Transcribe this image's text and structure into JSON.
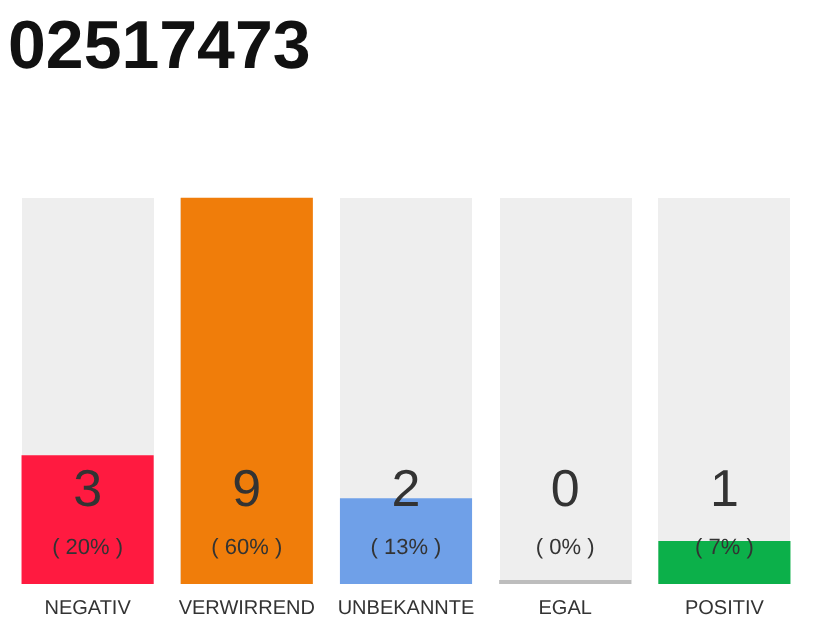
{
  "chart_data": {
    "type": "bar",
    "title": "02517473",
    "categories": [
      "NEGATIV",
      "VERWIRREND",
      "UNBEKANNTE",
      "EGAL",
      "POSITIV"
    ],
    "values": [
      3,
      9,
      2,
      0,
      1
    ],
    "colors": [
      "#ff1a40",
      "#f07d0a",
      "#6fa0e8",
      "#bdbdbd",
      "#0cb04a"
    ],
    "value_labels": [
      "3",
      "9",
      "2",
      "0",
      "1"
    ],
    "annotations": [
      "( 20% )",
      "( 60% )",
      "( 13% )",
      "( 0% )",
      "( 7% )"
    ],
    "grid": false,
    "legend": false
  }
}
